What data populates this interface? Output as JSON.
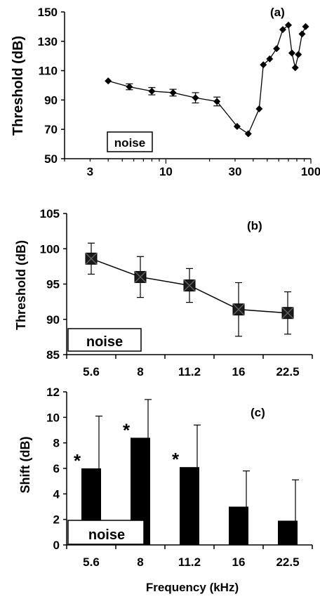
{
  "chart_data": [
    {
      "panel_label": "(a)",
      "type": "scatter",
      "ylabel": "Threshold (dB)",
      "xlabel": "",
      "x_scale": "log",
      "xlim": [
        2,
        100
      ],
      "ylim": [
        50,
        150
      ],
      "x_ticks": [
        "3",
        "10",
        "30",
        "100"
      ],
      "y_ticks": [
        "50",
        "70",
        "90",
        "110",
        "130",
        "150"
      ],
      "inset_label": "noise",
      "series": [
        {
          "marker": "diamond",
          "color": "#000000",
          "x": [
            4,
            5.6,
            8,
            11.2,
            16,
            22.5,
            31,
            37,
            44,
            47,
            52,
            58,
            64,
            70,
            74,
            78,
            82,
            87,
            92
          ],
          "y": [
            103,
            99,
            96,
            95,
            91.5,
            89,
            72,
            67,
            84,
            114,
            118,
            125,
            138,
            141,
            122,
            112,
            121,
            135,
            140
          ],
          "error": [
            0,
            2,
            2.5,
            2.3,
            3.5,
            3,
            0,
            0,
            0,
            0,
            0,
            0,
            0,
            0,
            0,
            0,
            0,
            0,
            0
          ]
        }
      ]
    },
    {
      "panel_label": "(b)",
      "type": "line",
      "ylabel": "Threshold (dB)",
      "xlabel": "",
      "categories": [
        "5.6",
        "8",
        "11.2",
        "16",
        "22.5"
      ],
      "ylim": [
        85,
        105
      ],
      "y_ticks": [
        "85",
        "90",
        "95",
        "100",
        "105"
      ],
      "inset_label": "noise",
      "series": [
        {
          "marker": "square-x",
          "color": "#000000",
          "values": [
            98.6,
            96.0,
            94.8,
            91.4,
            90.9
          ],
          "error": [
            2.2,
            2.9,
            2.4,
            3.8,
            3.0
          ]
        }
      ]
    },
    {
      "panel_label": "(c)",
      "type": "bar",
      "ylabel": "Shift (dB)",
      "xlabel": "Frequency (kHz)",
      "categories": [
        "5.6",
        "8",
        "11.2",
        "16",
        "22.5"
      ],
      "ylim": [
        0,
        12
      ],
      "y_ticks": [
        "0",
        "2",
        "4",
        "6",
        "8",
        "10",
        "12"
      ],
      "inset_label": "noise",
      "significance_marker": "*",
      "significant": [
        true,
        true,
        true,
        false,
        false
      ],
      "series": [
        {
          "color": "#000000",
          "values": [
            6.0,
            8.4,
            6.1,
            3.0,
            1.9
          ],
          "error": [
            4.1,
            3.0,
            3.3,
            2.8,
            3.2
          ]
        }
      ]
    }
  ]
}
